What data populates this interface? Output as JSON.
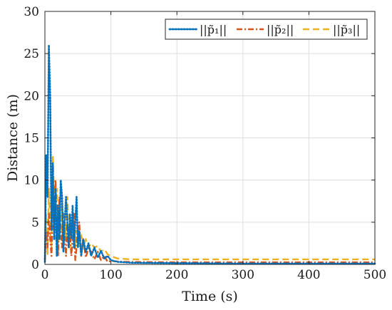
{
  "chart_data": {
    "type": "line",
    "title": "",
    "xlabel": "Time (s)",
    "ylabel": "Distance (m)",
    "xlim": [
      0,
      500
    ],
    "ylim": [
      0,
      30
    ],
    "xticks": [
      0,
      100,
      200,
      300,
      400,
      500
    ],
    "yticks": [
      0,
      5,
      10,
      15,
      20,
      25,
      30
    ],
    "xtick_labels": [
      "0",
      "100",
      "200",
      "300",
      "400",
      "500"
    ],
    "ytick_labels": [
      "0",
      "5",
      "10",
      "15",
      "20",
      "25",
      "30"
    ],
    "grid": true,
    "legend_position": "top-right",
    "series": [
      {
        "name": "||p̃₁||",
        "color": "#0072BD",
        "style": "dotted",
        "points": [
          [
            0,
            0.3
          ],
          [
            2,
            13
          ],
          [
            4,
            8
          ],
          [
            6,
            26
          ],
          [
            8,
            20
          ],
          [
            10,
            4
          ],
          [
            12,
            12
          ],
          [
            14,
            3
          ],
          [
            16,
            9
          ],
          [
            18,
            1
          ],
          [
            20,
            7
          ],
          [
            22,
            3
          ],
          [
            24,
            10
          ],
          [
            26,
            8
          ],
          [
            28,
            1.5
          ],
          [
            30,
            5
          ],
          [
            32,
            8
          ],
          [
            34,
            5
          ],
          [
            36,
            2
          ],
          [
            38,
            6
          ],
          [
            40,
            3
          ],
          [
            42,
            7
          ],
          [
            44,
            2
          ],
          [
            46,
            5
          ],
          [
            48,
            8
          ],
          [
            50,
            2
          ],
          [
            52,
            4
          ],
          [
            55,
            1
          ],
          [
            58,
            3
          ],
          [
            62,
            1.5
          ],
          [
            66,
            2.5
          ],
          [
            70,
            1
          ],
          [
            75,
            2
          ],
          [
            80,
            0.8
          ],
          [
            85,
            1.6
          ],
          [
            90,
            0.7
          ],
          [
            95,
            1
          ],
          [
            100,
            0.5
          ],
          [
            110,
            0.3
          ],
          [
            130,
            0.2
          ],
          [
            200,
            0.15
          ],
          [
            300,
            0.1
          ],
          [
            400,
            0.1
          ],
          [
            500,
            0.1
          ]
        ]
      },
      {
        "name": "||p̃₂||",
        "color": "#D95319",
        "style": "dashdot",
        "points": [
          [
            0,
            0.5
          ],
          [
            2,
            4
          ],
          [
            4,
            2
          ],
          [
            6,
            6
          ],
          [
            8,
            3
          ],
          [
            10,
            1
          ],
          [
            12,
            7
          ],
          [
            14,
            4
          ],
          [
            16,
            10
          ],
          [
            18,
            6
          ],
          [
            20,
            1
          ],
          [
            22,
            8
          ],
          [
            24,
            4
          ],
          [
            26,
            2
          ],
          [
            28,
            6
          ],
          [
            30,
            3
          ],
          [
            32,
            1
          ],
          [
            34,
            5
          ],
          [
            36,
            2
          ],
          [
            38,
            4
          ],
          [
            40,
            1
          ],
          [
            42,
            3
          ],
          [
            44,
            6
          ],
          [
            46,
            0.5
          ],
          [
            48,
            2
          ],
          [
            50,
            4
          ],
          [
            52,
            5
          ],
          [
            55,
            1
          ],
          [
            58,
            3
          ],
          [
            62,
            0.8
          ],
          [
            66,
            2
          ],
          [
            70,
            1.5
          ],
          [
            75,
            0.6
          ],
          [
            80,
            1.5
          ],
          [
            85,
            0.5
          ],
          [
            90,
            1
          ],
          [
            95,
            0.3
          ],
          [
            100,
            0.4
          ],
          [
            120,
            0.3
          ],
          [
            200,
            0.25
          ],
          [
            300,
            0.25
          ],
          [
            400,
            0.25
          ],
          [
            500,
            0.25
          ]
        ]
      },
      {
        "name": "||p̃₃||",
        "color": "#EDB120",
        "style": "dashed",
        "points": [
          [
            0,
            0.5
          ],
          [
            2,
            6
          ],
          [
            4,
            1
          ],
          [
            6,
            9
          ],
          [
            8,
            4
          ],
          [
            10,
            2
          ],
          [
            12,
            13
          ],
          [
            14,
            8
          ],
          [
            16,
            3
          ],
          [
            18,
            9
          ],
          [
            20,
            2
          ],
          [
            22,
            6
          ],
          [
            24,
            3
          ],
          [
            26,
            7
          ],
          [
            28,
            2
          ],
          [
            30,
            5
          ],
          [
            32,
            3
          ],
          [
            34,
            8
          ],
          [
            36,
            4
          ],
          [
            38,
            2
          ],
          [
            40,
            5
          ],
          [
            42,
            3
          ],
          [
            44,
            6
          ],
          [
            46,
            2
          ],
          [
            48,
            4
          ],
          [
            50,
            3
          ],
          [
            52,
            2
          ],
          [
            55,
            3.5
          ],
          [
            58,
            2
          ],
          [
            62,
            3
          ],
          [
            66,
            2
          ],
          [
            70,
            2.5
          ],
          [
            75,
            2
          ],
          [
            80,
            2.2
          ],
          [
            85,
            1.5
          ],
          [
            90,
            1.8
          ],
          [
            95,
            1.2
          ],
          [
            100,
            1
          ],
          [
            110,
            0.7
          ],
          [
            130,
            0.6
          ],
          [
            200,
            0.6
          ],
          [
            300,
            0.6
          ],
          [
            400,
            0.6
          ],
          [
            500,
            0.6
          ]
        ]
      }
    ]
  }
}
